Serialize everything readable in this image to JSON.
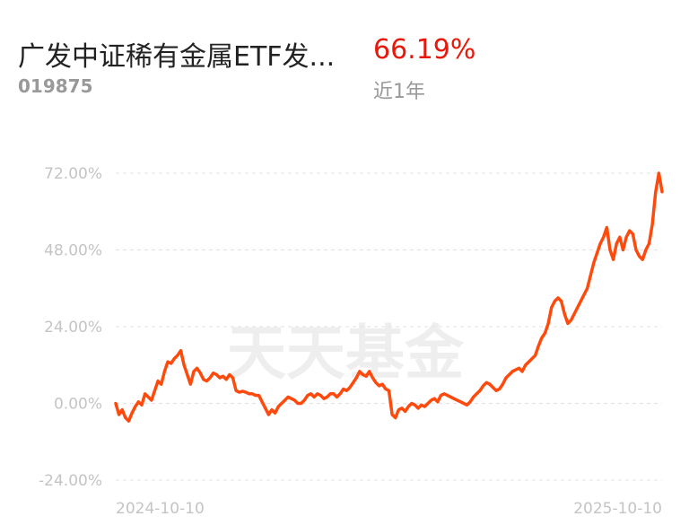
{
  "header": {
    "fund_name": "广发中证稀有金属ETF发...",
    "fund_code": "019875",
    "return_value": "66.19%",
    "return_period": "近1年",
    "colors": {
      "return": "#e8180c",
      "line": "#ff4a0d",
      "axis_text": "#c4c4c4",
      "grid": "#e6e6e6"
    }
  },
  "watermark": "天天基金",
  "chart_data": {
    "type": "line",
    "title": "",
    "xlabel": "",
    "ylabel": "",
    "ylim": [
      -24,
      72
    ],
    "yticks": [
      72,
      48,
      24,
      0,
      -24
    ],
    "ytick_labels": [
      "72.00%",
      "48.00%",
      "24.00%",
      "0.00%",
      "-24.00%"
    ],
    "xtick_labels": [
      "2024-10-10",
      "2025-10-10"
    ],
    "grid": true,
    "series": [
      {
        "values": [
          0.0,
          -3.5,
          -2.0,
          -4.5,
          -5.5,
          -3.0,
          -1.0,
          0.5,
          -0.5,
          3.0,
          2.0,
          1.0,
          4.0,
          7.0,
          6.0,
          10.0,
          13.0,
          12.5,
          14.0,
          15.0,
          16.5,
          12.0,
          9.0,
          6.0,
          10.0,
          11.0,
          9.5,
          7.5,
          7.0,
          8.0,
          9.5,
          9.0,
          8.0,
          8.5,
          7.5,
          9.0,
          8.0,
          4.0,
          3.5,
          3.8,
          3.5,
          3.0,
          3.0,
          2.5,
          2.5,
          0.5,
          -1.5,
          -3.5,
          -2.0,
          -3.0,
          -1.0,
          0.0,
          1.0,
          2.0,
          1.5,
          1.0,
          0.0,
          0.0,
          1.0,
          2.5,
          3.0,
          2.0,
          3.0,
          2.5,
          1.5,
          2.0,
          3.0,
          3.0,
          2.0,
          3.0,
          4.5,
          4.0,
          5.0,
          6.5,
          8.0,
          10.0,
          9.0,
          8.5,
          10.0,
          8.0,
          6.5,
          5.5,
          6.0,
          4.5,
          4.0,
          -3.5,
          -4.5,
          -2.0,
          -1.5,
          -2.5,
          -1.0,
          0.0,
          -0.5,
          -1.5,
          -0.5,
          -1.0,
          0.0,
          1.0,
          1.5,
          0.5,
          2.5,
          3.0,
          2.5,
          2.0,
          1.5,
          1.0,
          0.5,
          0.0,
          -0.5,
          0.5,
          2.0,
          3.0,
          4.0,
          5.5,
          6.5,
          6.0,
          5.0,
          4.0,
          4.5,
          6.0,
          8.0,
          9.0,
          10.0,
          10.5,
          11.0,
          10.0,
          12.0,
          13.0,
          14.0,
          15.0,
          18.0,
          20.5,
          22.0,
          25.0,
          30.0,
          32.0,
          33.0,
          32.0,
          28.0,
          25.0,
          26.0,
          28.0,
          30.0,
          32.0,
          34.0,
          36.0,
          40.0,
          44.0,
          47.0,
          50.0,
          52.0,
          55.0,
          48.0,
          45.0,
          50.0,
          52.0,
          48.0,
          52.0,
          54.0,
          53.0,
          48.0,
          46.0,
          45.0,
          48.0,
          50.0,
          56.0,
          66.0,
          72.0,
          66.19
        ]
      }
    ]
  }
}
